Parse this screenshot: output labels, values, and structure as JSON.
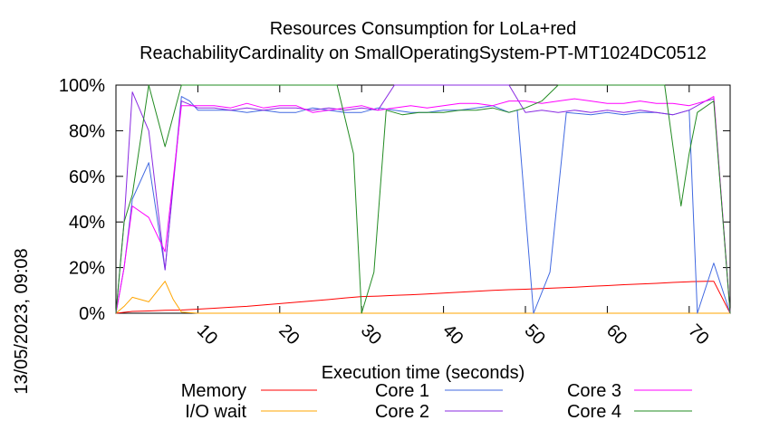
{
  "chart_data": {
    "type": "line",
    "title": "Resources Consumption for LoLa+red",
    "subtitle": "ReachabilityCardinality on SmallOperatingSystem-PT-MT1024DC0512",
    "xlabel": "Execution time (seconds)",
    "ylabel": "",
    "side_label": "13/05/2023, 09:08",
    "xlim": [
      0,
      75
    ],
    "ylim": [
      0,
      100
    ],
    "x_ticks": [
      10,
      20,
      30,
      40,
      50,
      60,
      70
    ],
    "x_tick_labels": [
      "10",
      "20",
      "30",
      "40",
      "50",
      "60",
      "70"
    ],
    "y_ticks": [
      0,
      20,
      40,
      60,
      80,
      100
    ],
    "y_tick_labels": [
      "0%",
      "20%",
      "40%",
      "60%",
      "80%",
      "100%"
    ],
    "grid": false,
    "legend_position": "bottom",
    "series": [
      {
        "name": "Memory",
        "color": "#ff0000",
        "points": [
          [
            0,
            0
          ],
          [
            2,
            0.8
          ],
          [
            4,
            1
          ],
          [
            6,
            1.3
          ],
          [
            8,
            1.4
          ],
          [
            10,
            1.8
          ],
          [
            12,
            2.2
          ],
          [
            14,
            2.6
          ],
          [
            16,
            3
          ],
          [
            18,
            3.6
          ],
          [
            20,
            4.2
          ],
          [
            22,
            4.8
          ],
          [
            24,
            5.4
          ],
          [
            26,
            6
          ],
          [
            28,
            6.7
          ],
          [
            30,
            7.3
          ],
          [
            32,
            7.5
          ],
          [
            34,
            7.8
          ],
          [
            36,
            8.1
          ],
          [
            38,
            8.4
          ],
          [
            40,
            8.8
          ],
          [
            42,
            9.2
          ],
          [
            44,
            9.6
          ],
          [
            46,
            10
          ],
          [
            48,
            10.3
          ],
          [
            50,
            10.5
          ],
          [
            52,
            10.8
          ],
          [
            54,
            11.1
          ],
          [
            56,
            11.4
          ],
          [
            58,
            11.8
          ],
          [
            60,
            12.1
          ],
          [
            62,
            12.5
          ],
          [
            64,
            12.8
          ],
          [
            66,
            13.1
          ],
          [
            68,
            13.5
          ],
          [
            70,
            13.8
          ],
          [
            72,
            14
          ],
          [
            73,
            14
          ],
          [
            75,
            0
          ]
        ]
      },
      {
        "name": "I/O wait",
        "color": "#ffa500",
        "points": [
          [
            0,
            0
          ],
          [
            1,
            3
          ],
          [
            2,
            7
          ],
          [
            4,
            5
          ],
          [
            6,
            14
          ],
          [
            7,
            6
          ],
          [
            8,
            0.5
          ],
          [
            10,
            0
          ],
          [
            20,
            0
          ],
          [
            30,
            0
          ],
          [
            40,
            0
          ],
          [
            50,
            0
          ],
          [
            60,
            0
          ],
          [
            70,
            0
          ],
          [
            75,
            0
          ]
        ]
      },
      {
        "name": "Core 1",
        "color": "#4169e1",
        "points": [
          [
            0,
            0
          ],
          [
            1,
            20
          ],
          [
            2,
            50
          ],
          [
            4,
            66
          ],
          [
            6,
            19
          ],
          [
            8,
            95
          ],
          [
            9,
            93
          ],
          [
            10,
            89
          ],
          [
            12,
            89
          ],
          [
            14,
            89
          ],
          [
            16,
            88
          ],
          [
            18,
            89
          ],
          [
            20,
            88
          ],
          [
            22,
            88
          ],
          [
            24,
            90
          ],
          [
            26,
            89
          ],
          [
            28,
            88
          ],
          [
            30,
            88
          ],
          [
            32,
            90
          ],
          [
            34,
            89
          ],
          [
            36,
            88
          ],
          [
            38,
            88
          ],
          [
            40,
            89
          ],
          [
            42,
            89
          ],
          [
            44,
            90
          ],
          [
            46,
            91
          ],
          [
            48,
            88
          ],
          [
            49,
            89
          ],
          [
            51,
            0
          ],
          [
            53,
            18
          ],
          [
            55,
            88
          ],
          [
            58,
            87
          ],
          [
            60,
            88
          ],
          [
            62,
            87
          ],
          [
            64,
            88
          ],
          [
            66,
            88
          ],
          [
            68,
            87
          ],
          [
            70,
            89
          ],
          [
            71,
            0
          ],
          [
            73,
            22
          ],
          [
            75,
            0
          ]
        ]
      },
      {
        "name": "Core 2",
        "color": "#8a2be2",
        "points": [
          [
            0,
            0
          ],
          [
            1,
            40
          ],
          [
            2,
            97
          ],
          [
            4,
            80
          ],
          [
            6,
            19
          ],
          [
            8,
            93
          ],
          [
            10,
            90
          ],
          [
            12,
            90
          ],
          [
            14,
            89
          ],
          [
            16,
            90
          ],
          [
            18,
            89
          ],
          [
            20,
            90
          ],
          [
            22,
            90
          ],
          [
            24,
            89
          ],
          [
            26,
            90
          ],
          [
            28,
            89
          ],
          [
            30,
            90
          ],
          [
            32,
            89
          ],
          [
            34,
            100
          ],
          [
            36,
            100
          ],
          [
            38,
            100
          ],
          [
            40,
            100
          ],
          [
            42,
            100
          ],
          [
            44,
            100
          ],
          [
            46,
            100
          ],
          [
            48,
            100
          ],
          [
            50,
            88
          ],
          [
            52,
            89
          ],
          [
            54,
            88
          ],
          [
            56,
            89
          ],
          [
            58,
            88
          ],
          [
            60,
            89
          ],
          [
            62,
            88
          ],
          [
            64,
            89
          ],
          [
            66,
            88
          ],
          [
            68,
            87
          ],
          [
            70,
            89
          ],
          [
            72,
            93
          ],
          [
            73,
            94
          ],
          [
            75,
            0
          ]
        ]
      },
      {
        "name": "Core 3",
        "color": "#ff00ff",
        "points": [
          [
            0,
            0
          ],
          [
            1,
            20
          ],
          [
            2,
            47
          ],
          [
            4,
            42
          ],
          [
            6,
            27
          ],
          [
            8,
            91
          ],
          [
            10,
            91
          ],
          [
            12,
            91
          ],
          [
            14,
            90
          ],
          [
            16,
            92
          ],
          [
            18,
            90
          ],
          [
            20,
            91
          ],
          [
            22,
            91
          ],
          [
            24,
            88
          ],
          [
            26,
            89
          ],
          [
            28,
            90
          ],
          [
            30,
            91
          ],
          [
            32,
            89
          ],
          [
            34,
            90
          ],
          [
            36,
            91
          ],
          [
            38,
            90
          ],
          [
            40,
            91
          ],
          [
            42,
            92
          ],
          [
            44,
            92
          ],
          [
            46,
            91
          ],
          [
            48,
            93
          ],
          [
            50,
            93
          ],
          [
            52,
            92
          ],
          [
            54,
            93
          ],
          [
            56,
            94
          ],
          [
            58,
            93
          ],
          [
            60,
            92
          ],
          [
            62,
            92
          ],
          [
            64,
            93
          ],
          [
            66,
            92
          ],
          [
            68,
            92
          ],
          [
            70,
            91
          ],
          [
            72,
            93
          ],
          [
            73,
            95
          ],
          [
            75,
            0
          ]
        ]
      },
      {
        "name": "Core 4",
        "color": "#228b22",
        "points": [
          [
            0,
            0
          ],
          [
            1,
            40
          ],
          [
            2,
            52
          ],
          [
            4,
            100
          ],
          [
            6,
            73
          ],
          [
            8,
            100
          ],
          [
            10,
            100
          ],
          [
            14,
            100
          ],
          [
            18,
            100
          ],
          [
            22,
            100
          ],
          [
            26,
            100
          ],
          [
            27,
            100
          ],
          [
            29,
            70
          ],
          [
            30,
            0
          ],
          [
            31.5,
            18
          ],
          [
            33,
            89
          ],
          [
            35,
            87
          ],
          [
            37,
            88
          ],
          [
            40,
            88
          ],
          [
            42,
            89
          ],
          [
            44,
            89
          ],
          [
            46,
            90
          ],
          [
            48,
            88
          ],
          [
            50,
            90
          ],
          [
            52,
            93
          ],
          [
            54,
            100
          ],
          [
            56,
            100
          ],
          [
            60,
            100
          ],
          [
            64,
            100
          ],
          [
            66,
            100
          ],
          [
            67,
            100
          ],
          [
            69,
            47
          ],
          [
            70,
            70
          ],
          [
            71,
            88
          ],
          [
            73,
            93
          ],
          [
            75,
            0
          ]
        ]
      }
    ]
  }
}
